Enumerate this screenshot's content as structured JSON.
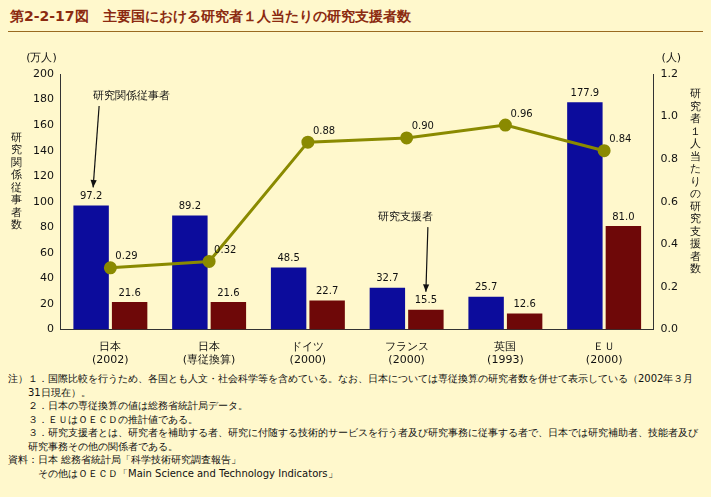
{
  "chart_data": {
    "type": "bar",
    "title": "第2-2-17図　主要国における研究者１人当たりの研究支援者数",
    "categories": [
      [
        "日本",
        "(2002)"
      ],
      [
        "日本",
        "(専従換算)"
      ],
      [
        "ドイツ",
        "(2000)"
      ],
      [
        "フランス",
        "(2000)"
      ],
      [
        "英国",
        "(1993)"
      ],
      [
        "ＥＵ",
        "(2000)"
      ]
    ],
    "series": [
      {
        "name": "研究関係従事者",
        "color": "#0c0c9c",
        "values": [
          97.2,
          89.2,
          48.5,
          32.7,
          25.7,
          177.9
        ]
      },
      {
        "name": "研究支援者",
        "color": "#6e0808",
        "values": [
          21.6,
          21.6,
          22.7,
          15.5,
          12.6,
          81.0
        ],
        "value_labels": [
          "21.6",
          "21.6",
          "22.7",
          "15.5",
          "12.6",
          "81.0"
        ]
      },
      {
        "name": "研究者１人当たりの研究支援者数",
        "type": "line",
        "axis": "y2",
        "color": "#8a8a00",
        "marker": "circle",
        "values": [
          0.29,
          0.32,
          0.88,
          0.9,
          0.96,
          0.84
        ],
        "value_labels": [
          "0.29",
          "0.32",
          "0.88",
          "0.90",
          "0.96",
          "0.84"
        ]
      }
    ],
    "ylabel": "研究関係従事者数",
    "yunit": "(万人)",
    "y2label": "研究者１人当たりの研究支援者数",
    "y2unit": "(人)",
    "ylim": [
      0,
      200
    ],
    "yticks": [
      0,
      20,
      40,
      60,
      80,
      100,
      120,
      140,
      160,
      180,
      200
    ],
    "y2lim": [
      0,
      1.2
    ],
    "y2ticks": [
      {
        "value": 0,
        "label": "0.0"
      },
      0.2,
      0.4,
      0.6,
      0.8,
      {
        "value": 1,
        "label": "1.0"
      },
      1.2
    ],
    "grid": false,
    "data_labels": true,
    "notes_title": "注）",
    "notes": [
      "１．国際比較を行うため、各国とも人文・社会科学等を含めている。なお、日本については専従換算の研究者数を併せて表示している（2002年３月31日現在）。",
      "２．日本の専従換算の値は総務省統計局データ。",
      "３．ＥＵはＯＥＣＤの推計値である。",
      "３．研究支援者とは、研究者を補助する者、研究に付随する技術的サービスを行う者及び研究事務に従事する者で、日本では研究補助者、技能者及び研究事務その他の関係者である。"
    ],
    "source": [
      "資料：日本 総務省統計局「科学技術研究調査報告」",
      "その他はＯＥＣＤ「Main Science and Technology Indicators」"
    ]
  }
}
